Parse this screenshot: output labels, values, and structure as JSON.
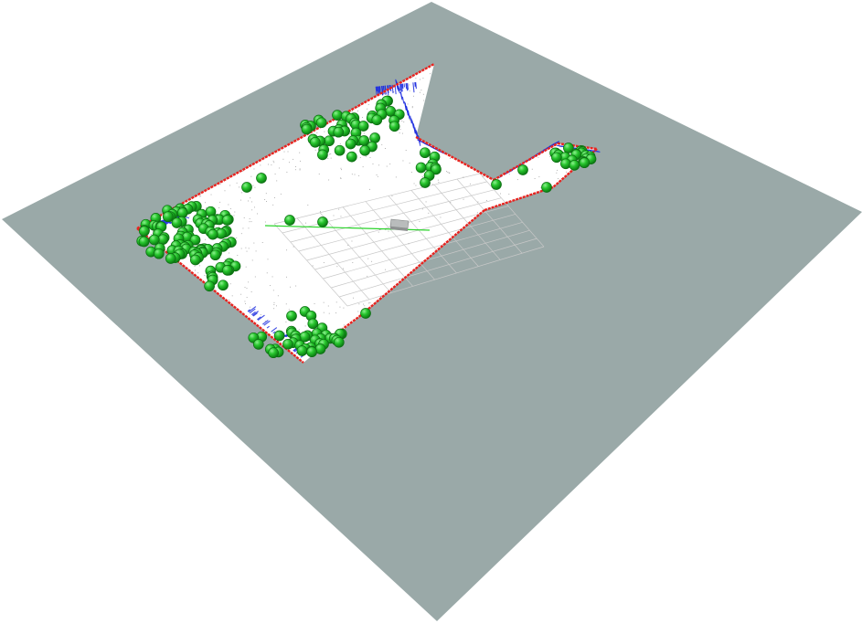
{
  "scene": {
    "background_color": "#ffffff",
    "ground_plane_color": "#9aa9a8",
    "map_free_color": "#ffffff",
    "map_wall_color": "#e8231f",
    "scan_color": "#1f2fe0",
    "landmark_color": "#22c22a",
    "landmark_outline_color": "#0c6e12",
    "path_color": "#2bd42b",
    "grid_color": "#c8c8c8",
    "robot_color": "#b9bcbc"
  },
  "icons": {
    "robot": "robot-model-icon",
    "landmark": "landmark-sphere-icon"
  }
}
